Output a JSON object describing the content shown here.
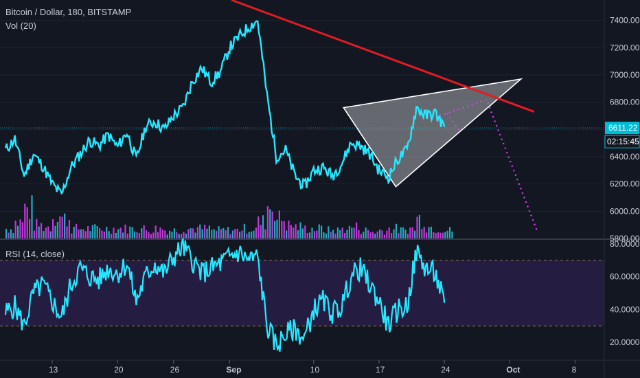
{
  "legend": {
    "symbol": "Bitcoin / Dollar, 180, BITSTAMP",
    "volume": "Vol (20)",
    "rsi": "RSI (14, close)"
  },
  "chart_data": [
    {
      "type": "line",
      "title": "Bitcoin / Dollar, 180, BITSTAMP",
      "ylim": [
        5800,
        7550
      ],
      "y_ticks": [
        "7400.00",
        "7200.00",
        "7000.00",
        "6800.00",
        "6600.00",
        "6400.00",
        "6200.00",
        "6000.00",
        "5800.00"
      ],
      "x_ticks": [
        "13",
        "20",
        "26",
        "Sep",
        "10",
        "17",
        "24",
        "Oct",
        "8"
      ],
      "last_price": "6611.22",
      "countdown": "02:15:45",
      "series": [
        {
          "x": [
            "Aug 8",
            "Aug 9",
            "Aug 10",
            "Aug 11",
            "Aug 12",
            "Aug 13",
            "Aug 14",
            "Aug 15",
            "Aug 16",
            "Aug 17",
            "Aug 18",
            "Aug 19",
            "Aug 20",
            "Aug 21",
            "Aug 22",
            "Aug 23",
            "Aug 24",
            "Aug 25",
            "Aug 26",
            "Aug 27",
            "Aug 28",
            "Aug 29",
            "Aug 30",
            "Aug 31",
            "Sep 1",
            "Sep 2",
            "Sep 3",
            "Sep 4",
            "Sep 5",
            "Sep 6",
            "Sep 7",
            "Sep 8",
            "Sep 9",
            "Sep 10",
            "Sep 11",
            "Sep 12",
            "Sep 13",
            "Sep 14",
            "Sep 15",
            "Sep 16",
            "Sep 17",
            "Sep 18",
            "Sep 19",
            "Sep 20",
            "Sep 21",
            "Sep 22",
            "Sep 23",
            "Sep 24"
          ],
          "values": [
            6450,
            6530,
            6260,
            6420,
            6330,
            6200,
            6120,
            6320,
            6420,
            6520,
            6480,
            6560,
            6470,
            6580,
            6380,
            6620,
            6660,
            6600,
            6700,
            6760,
            6950,
            7050,
            6950,
            7020,
            7200,
            7280,
            7350,
            7400,
            6850,
            6400,
            6450,
            6260,
            6180,
            6300,
            6320,
            6260,
            6350,
            6500,
            6480,
            6420,
            6300,
            6250,
            6380,
            6450,
            6760,
            6700,
            6720,
            6620
          ]
        }
      ]
    },
    {
      "type": "bar",
      "title": "Vol (20)",
      "x": [
        "Aug 8",
        "Aug 9",
        "Aug 10",
        "Aug 11",
        "Aug 12",
        "Aug 13",
        "Aug 14",
        "Aug 15",
        "Aug 16",
        "Aug 17",
        "Aug 18",
        "Aug 19",
        "Aug 20",
        "Aug 21",
        "Aug 22",
        "Aug 23",
        "Aug 24",
        "Aug 25",
        "Aug 26",
        "Aug 27",
        "Aug 28",
        "Aug 29",
        "Aug 30",
        "Aug 31",
        "Sep 1",
        "Sep 2",
        "Sep 3",
        "Sep 4",
        "Sep 5",
        "Sep 6",
        "Sep 7",
        "Sep 8",
        "Sep 9",
        "Sep 10",
        "Sep 11",
        "Sep 12",
        "Sep 13",
        "Sep 14",
        "Sep 15",
        "Sep 16",
        "Sep 17",
        "Sep 18",
        "Sep 19",
        "Sep 20",
        "Sep 21",
        "Sep 22",
        "Sep 23",
        "Sep 24"
      ],
      "values": [
        0.3,
        0.5,
        0.9,
        0.4,
        0.35,
        0.7,
        0.6,
        0.3,
        0.3,
        0.3,
        0.3,
        0.3,
        0.3,
        0.3,
        0.3,
        0.25,
        0.3,
        0.25,
        0.25,
        0.3,
        0.3,
        0.3,
        0.25,
        0.25,
        0.25,
        0.3,
        0.3,
        0.5,
        1.0,
        0.6,
        0.4,
        0.35,
        0.3,
        0.3,
        0.25,
        0.25,
        0.3,
        0.35,
        0.25,
        0.2,
        0.25,
        0.3,
        0.25,
        0.3,
        0.6,
        0.35,
        0.3,
        0.25
      ],
      "colors": {
        "up": "#26c6da",
        "down": "#e040fb"
      }
    },
    {
      "type": "line",
      "title": "RSI (14, close)",
      "ylim": [
        10,
        82
      ],
      "y_ticks": [
        "80.0000",
        "60.0000",
        "40.0000",
        "20.0000"
      ],
      "bands": [
        30,
        70
      ],
      "x": [
        "Aug 8",
        "Aug 9",
        "Aug 10",
        "Aug 11",
        "Aug 12",
        "Aug 13",
        "Aug 14",
        "Aug 15",
        "Aug 16",
        "Aug 17",
        "Aug 18",
        "Aug 19",
        "Aug 20",
        "Aug 21",
        "Aug 22",
        "Aug 23",
        "Aug 24",
        "Aug 25",
        "Aug 26",
        "Aug 27",
        "Aug 28",
        "Aug 29",
        "Aug 30",
        "Aug 31",
        "Sep 1",
        "Sep 2",
        "Sep 3",
        "Sep 4",
        "Sep 5",
        "Sep 6",
        "Sep 7",
        "Sep 8",
        "Sep 9",
        "Sep 10",
        "Sep 11",
        "Sep 12",
        "Sep 13",
        "Sep 14",
        "Sep 15",
        "Sep 16",
        "Sep 17",
        "Sep 18",
        "Sep 19",
        "Sep 20",
        "Sep 21",
        "Sep 22",
        "Sep 23",
        "Sep 24"
      ],
      "values": [
        38,
        42,
        30,
        50,
        55,
        45,
        35,
        55,
        65,
        60,
        58,
        65,
        62,
        68,
        45,
        60,
        68,
        62,
        72,
        78,
        70,
        62,
        65,
        68,
        72,
        75,
        70,
        72,
        30,
        18,
        25,
        28,
        22,
        40,
        45,
        38,
        42,
        60,
        65,
        55,
        45,
        30,
        40,
        42,
        75,
        65,
        62,
        44
      ]
    }
  ],
  "colors": {
    "background": "#131722",
    "price_line": "#26e7ff",
    "trendline": "#e31b23",
    "projection": "#e040fb",
    "rsi_band_fill": "#2a1f4a",
    "grid": "#1f2433"
  }
}
